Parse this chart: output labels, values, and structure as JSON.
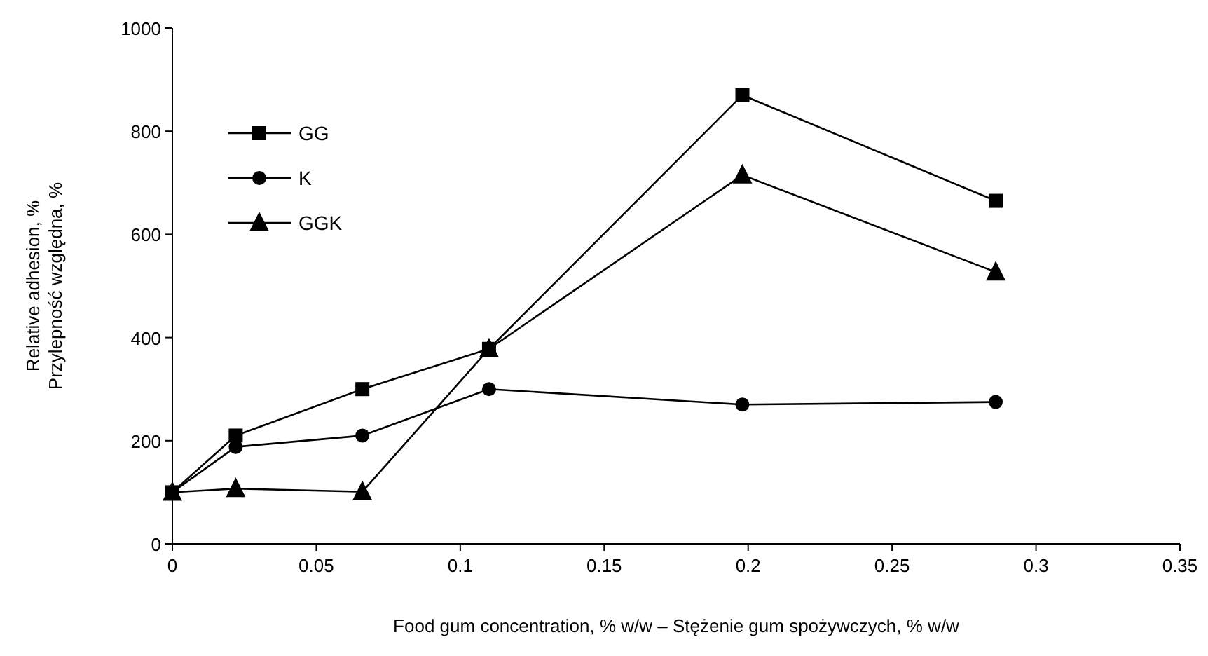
{
  "chart_data": {
    "type": "line",
    "xlabel": "Food gum concentration, % w/w – Stężenie gum spożywczych, % w/w",
    "ylabel": "Relative adhesion, %\nPrzylepność względna, %",
    "x": [
      0,
      0.022,
      0.066,
      0.11,
      0.198,
      0.286
    ],
    "series": [
      {
        "name": "GG",
        "color": "#000000",
        "marker": "square",
        "values": [
          100,
          210,
          300,
          378,
          870,
          665
        ]
      },
      {
        "name": "K",
        "color": "#000000",
        "marker": "circle",
        "values": [
          100,
          188,
          210,
          300,
          270,
          275
        ]
      },
      {
        "name": "GGK",
        "color": "#000000",
        "marker": "triangle",
        "values": [
          100,
          107,
          101,
          378,
          715,
          527
        ]
      }
    ],
    "xlim": [
      0,
      0.35
    ],
    "xticks": [
      0,
      0.05,
      0.1,
      0.15,
      0.2,
      0.25,
      0.3,
      0.35
    ],
    "ylim": [
      0,
      1000
    ],
    "yticks": [
      0,
      200,
      400,
      600,
      800,
      1000
    ],
    "grid": false,
    "legend": "top left",
    "line_style": "solid"
  }
}
